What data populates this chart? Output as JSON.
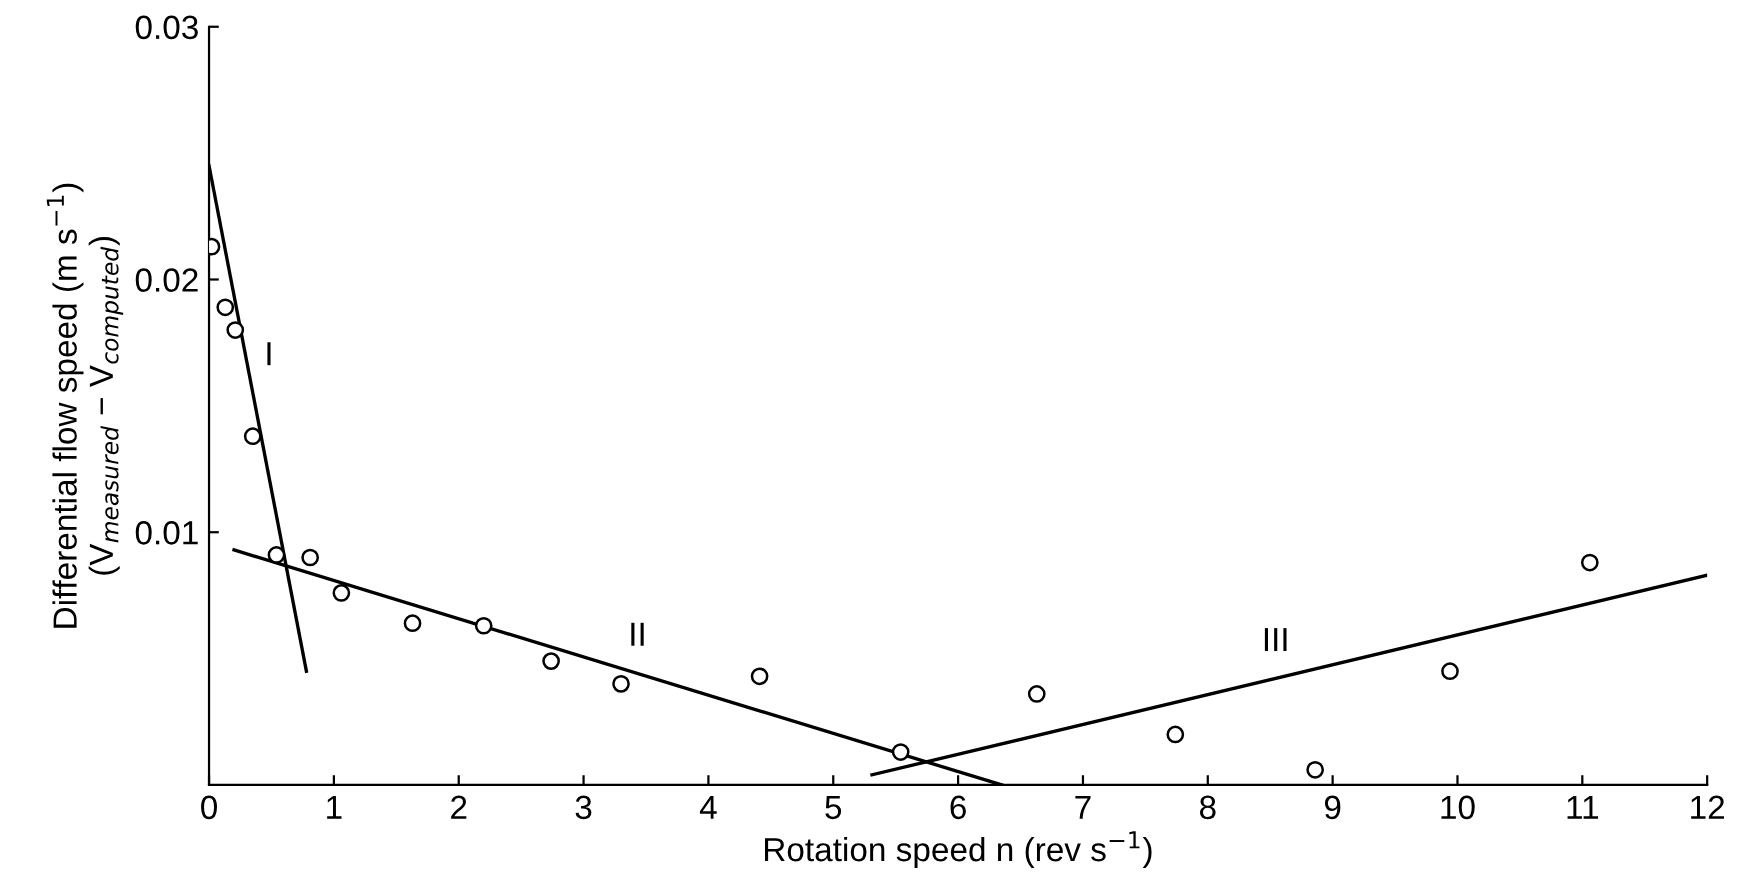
{
  "chart_data": {
    "type": "scatter",
    "xlabel": "Rotation speed n (rev s$^{−1}$)",
    "ylabel": "Differential flow speed (m s$^{−1}$)\n(V$_{measured}$ − V$_{computed}$)",
    "xlim": [
      0,
      12
    ],
    "ylim": [
      0,
      0.03
    ],
    "xticks": [
      0,
      1,
      2,
      3,
      4,
      5,
      6,
      7,
      8,
      9,
      10,
      11,
      12
    ],
    "yticks": [
      {
        "value": 0.01,
        "label": "0.01"
      },
      {
        "value": 0.02,
        "label": "0.02"
      },
      {
        "value": 0.03,
        "label": "0.03"
      }
    ],
    "grid": false,
    "legend": false,
    "series": [
      {
        "color": "#000000",
        "marker": "circle",
        "x": [
          0.02,
          0.13,
          0.21,
          0.35,
          0.54,
          0.81,
          1.06,
          1.63,
          2.2,
          2.74,
          3.3,
          4.41,
          5.54,
          6.63,
          7.74,
          8.86,
          9.94,
          11.06
        ],
        "values": [
          0.0213,
          0.0189,
          0.018,
          0.0138,
          0.0091,
          0.009,
          0.0076,
          0.0064,
          0.0063,
          0.0049,
          0.004,
          0.0043,
          0.0013,
          0.0036,
          0.002,
          0.0006,
          0.0045,
          0.0088
        ]
      },
      {
        "type": "line",
        "color": "#000000",
        "line_style": "solid",
        "x": [
          0,
          0.78
        ],
        "values": [
          0.0245,
          0.0045
        ]
      },
      {
        "type": "line",
        "color": "#000000",
        "line_style": "solid",
        "x": [
          0.2,
          6.35
        ],
        "values": [
          0.0093,
          0
        ]
      },
      {
        "type": "line",
        "color": "#000000",
        "line_style": "solid",
        "x": [
          5.31,
          12
        ],
        "values": [
          0.0004,
          0.0083
        ]
      }
    ],
    "annotations": [
      "I",
      "II",
      "III"
    ]
  }
}
